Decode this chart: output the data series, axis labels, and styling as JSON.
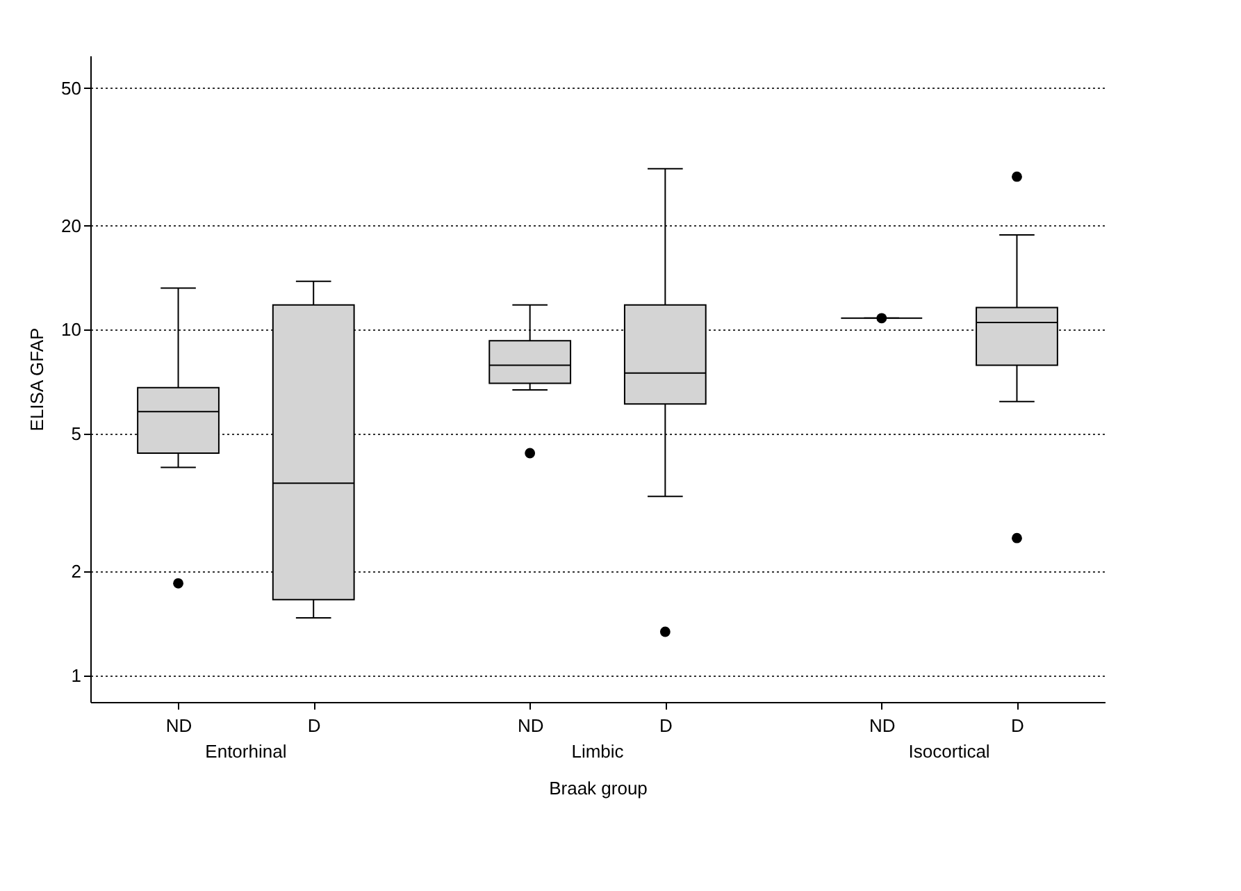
{
  "chart_data": {
    "type": "box",
    "ylabel": "ELISA GFAP",
    "xlabel": "Braak group",
    "categories": [
      "ND",
      "D",
      "ND",
      "D",
      "ND",
      "D"
    ],
    "annotations": [
      "Entorhinal",
      "Limbic",
      "Isocortical"
    ],
    "log": true,
    "ylim": [
      0.84,
      62
    ],
    "yticks": [
      1,
      2,
      5,
      10,
      20,
      50
    ],
    "grid": "y",
    "series": [
      {
        "color": "#d4d4d4",
        "boxes": [
          {
            "low": 4.0,
            "q1": 4.4,
            "median": 5.8,
            "q3": 6.8,
            "high": 13.2,
            "outliers": [
              1.85
            ]
          },
          {
            "low": 1.47,
            "q1": 1.66,
            "median": 3.6,
            "q3": 11.8,
            "high": 13.8
          },
          {
            "low": 6.7,
            "q1": 7.0,
            "median": 7.9,
            "q3": 9.3,
            "high": 11.8,
            "outliers": [
              4.4
            ]
          },
          {
            "low": 3.3,
            "q1": 6.1,
            "median": 7.5,
            "q3": 11.8,
            "high": 29.2,
            "outliers": [
              1.34
            ]
          },
          {
            "low": 10.8,
            "q1": 10.8,
            "median": 10.8,
            "q3": 10.8,
            "high": 10.8,
            "outliers": [
              10.8
            ]
          },
          {
            "low": 6.2,
            "q1": 7.9,
            "median": 10.5,
            "q3": 11.6,
            "high": 18.8,
            "outliers": [
              27.7,
              2.5
            ]
          }
        ]
      }
    ]
  }
}
